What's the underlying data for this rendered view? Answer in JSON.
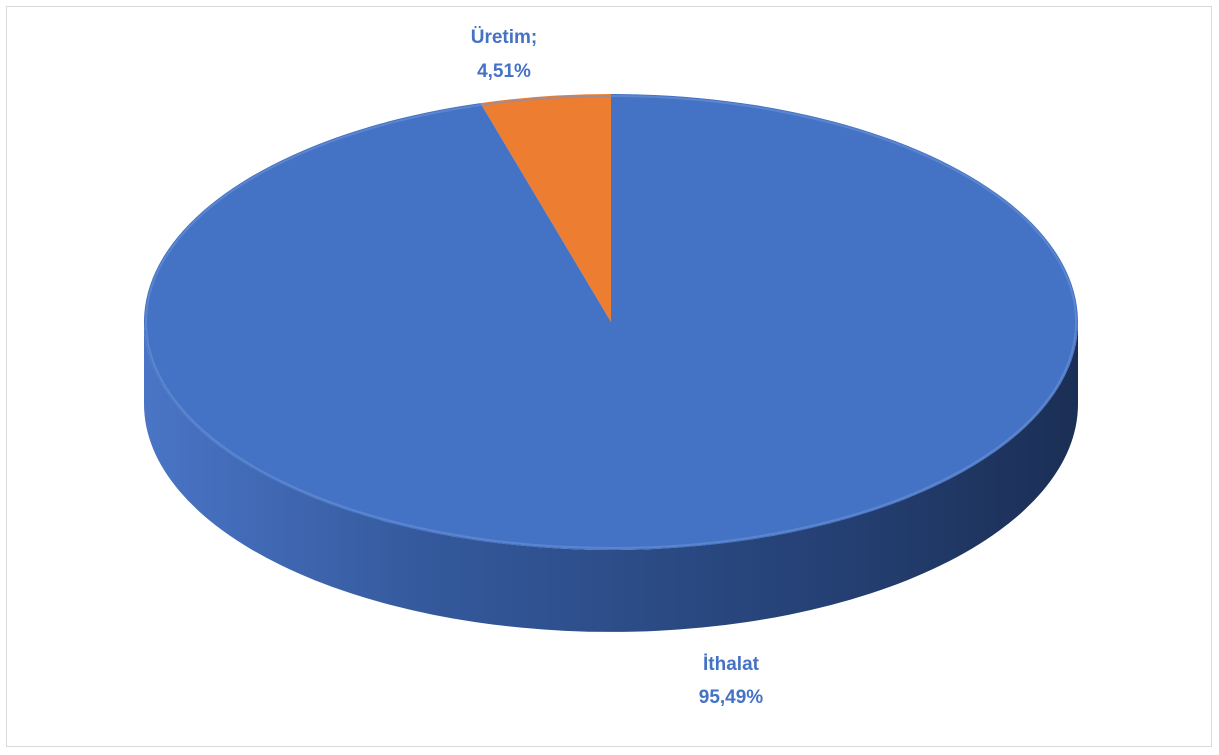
{
  "chart_data": {
    "type": "pie",
    "title": "",
    "categories": [
      "Üretim",
      "İthalat"
    ],
    "values": [
      4.51,
      95.49
    ],
    "unit": "%",
    "colors": [
      "#ed7d31",
      "#4472c4"
    ],
    "labels": [
      {
        "name": "Üretim;",
        "value": "4,51%"
      },
      {
        "name": "İthalat",
        "value": "95,49%"
      }
    ],
    "legend": "none",
    "style": "3d"
  }
}
